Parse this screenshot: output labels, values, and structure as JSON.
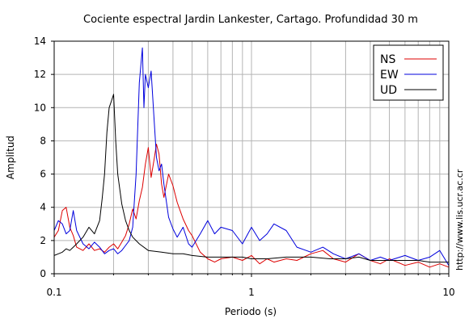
{
  "chart_data": {
    "type": "line",
    "title": "Cociente espectral Jardin Lankester, Cartago. Profundidad 30 m",
    "xlabel": "Periodo (s)",
    "ylabel": "Amplitud",
    "x_scale": "log",
    "xlim": [
      0.1,
      10
    ],
    "ylim": [
      0,
      14
    ],
    "x_ticks": [
      0.1,
      1,
      10
    ],
    "x_tick_labels": [
      "0.1",
      "1",
      "10"
    ],
    "y_ticks": [
      0,
      2,
      4,
      6,
      8,
      10,
      12,
      14
    ],
    "y_tick_labels": [
      "0",
      "2",
      "4",
      "6",
      "8",
      "10",
      "12",
      "14"
    ],
    "grid": true,
    "legend_position": "top-right",
    "credit": "http://www.lis.ucr.ac.cr",
    "series": [
      {
        "name": "NS",
        "color": "#dd0000",
        "x": [
          0.1,
          0.105,
          0.11,
          0.115,
          0.12,
          0.125,
          0.13,
          0.14,
          0.15,
          0.16,
          0.17,
          0.18,
          0.19,
          0.2,
          0.21,
          0.22,
          0.23,
          0.24,
          0.25,
          0.26,
          0.27,
          0.28,
          0.29,
          0.3,
          0.31,
          0.32,
          0.33,
          0.34,
          0.35,
          0.36,
          0.38,
          0.4,
          0.42,
          0.45,
          0.48,
          0.5,
          0.55,
          0.6,
          0.65,
          0.7,
          0.8,
          0.9,
          1.0,
          1.1,
          1.2,
          1.3,
          1.5,
          1.7,
          2.0,
          2.3,
          2.6,
          3.0,
          3.5,
          4.0,
          4.5,
          5.0,
          6.0,
          7.0,
          8.0,
          9.0,
          10.0
        ],
        "y": [
          2.2,
          2.6,
          3.8,
          4.0,
          2.8,
          2.3,
          1.6,
          1.4,
          1.8,
          1.4,
          1.5,
          1.3,
          1.6,
          1.8,
          1.5,
          1.9,
          2.3,
          3.0,
          3.9,
          3.3,
          4.4,
          5.2,
          6.6,
          7.6,
          5.8,
          6.8,
          7.8,
          7.2,
          5.4,
          4.6,
          6.0,
          5.3,
          4.3,
          3.3,
          2.6,
          2.3,
          1.3,
          0.9,
          0.7,
          0.9,
          1.0,
          0.8,
          1.1,
          0.6,
          0.9,
          0.7,
          0.9,
          0.8,
          1.2,
          1.4,
          0.9,
          0.7,
          1.2,
          0.8,
          0.6,
          0.9,
          0.5,
          0.7,
          0.4,
          0.6,
          0.4
        ]
      },
      {
        "name": "EW",
        "color": "#0000dd",
        "x": [
          0.1,
          0.105,
          0.11,
          0.115,
          0.12,
          0.125,
          0.13,
          0.14,
          0.15,
          0.16,
          0.17,
          0.18,
          0.19,
          0.2,
          0.21,
          0.22,
          0.23,
          0.24,
          0.25,
          0.26,
          0.27,
          0.28,
          0.285,
          0.29,
          0.3,
          0.31,
          0.32,
          0.33,
          0.34,
          0.35,
          0.36,
          0.38,
          0.4,
          0.42,
          0.45,
          0.48,
          0.5,
          0.55,
          0.6,
          0.65,
          0.7,
          0.8,
          0.9,
          1.0,
          1.1,
          1.2,
          1.3,
          1.5,
          1.7,
          2.0,
          2.3,
          2.6,
          3.0,
          3.5,
          4.0,
          4.5,
          5.0,
          6.0,
          7.0,
          8.0,
          9.0,
          10.0
        ],
        "y": [
          2.6,
          3.2,
          3.0,
          2.4,
          2.6,
          3.8,
          2.6,
          1.8,
          1.5,
          1.9,
          1.6,
          1.2,
          1.4,
          1.5,
          1.2,
          1.4,
          1.7,
          2.0,
          2.8,
          6.0,
          11.5,
          13.6,
          10.0,
          12.0,
          11.2,
          12.2,
          9.5,
          7.0,
          6.2,
          6.6,
          5.4,
          3.4,
          2.7,
          2.2,
          2.8,
          1.8,
          1.6,
          2.4,
          3.2,
          2.4,
          2.8,
          2.6,
          1.8,
          2.8,
          2.0,
          2.4,
          3.0,
          2.6,
          1.6,
          1.3,
          1.6,
          1.2,
          0.9,
          1.2,
          0.8,
          1.0,
          0.8,
          1.1,
          0.8,
          1.0,
          1.4,
          0.5
        ]
      },
      {
        "name": "UD",
        "color": "#000000",
        "x": [
          0.1,
          0.105,
          0.11,
          0.115,
          0.12,
          0.125,
          0.13,
          0.14,
          0.15,
          0.16,
          0.17,
          0.175,
          0.18,
          0.185,
          0.19,
          0.195,
          0.2,
          0.205,
          0.21,
          0.22,
          0.23,
          0.24,
          0.25,
          0.27,
          0.3,
          0.35,
          0.4,
          0.45,
          0.5,
          0.6,
          0.7,
          0.8,
          0.9,
          1.0,
          1.2,
          1.5,
          2.0,
          2.5,
          3.0,
          3.5,
          4.0,
          5.0,
          6.0,
          7.0,
          8.0,
          9.0,
          10.0
        ],
        "y": [
          1.1,
          1.2,
          1.3,
          1.5,
          1.4,
          1.6,
          1.8,
          2.2,
          2.8,
          2.4,
          3.2,
          4.5,
          6.0,
          8.5,
          10.0,
          10.4,
          10.8,
          8.0,
          6.0,
          4.2,
          3.2,
          2.6,
          2.2,
          1.8,
          1.4,
          1.3,
          1.2,
          1.2,
          1.1,
          1.0,
          1.0,
          1.0,
          1.0,
          0.9,
          0.9,
          1.0,
          1.0,
          0.9,
          0.9,
          1.0,
          0.8,
          0.8,
          0.8,
          0.8,
          0.7,
          0.7,
          0.7
        ]
      }
    ]
  }
}
